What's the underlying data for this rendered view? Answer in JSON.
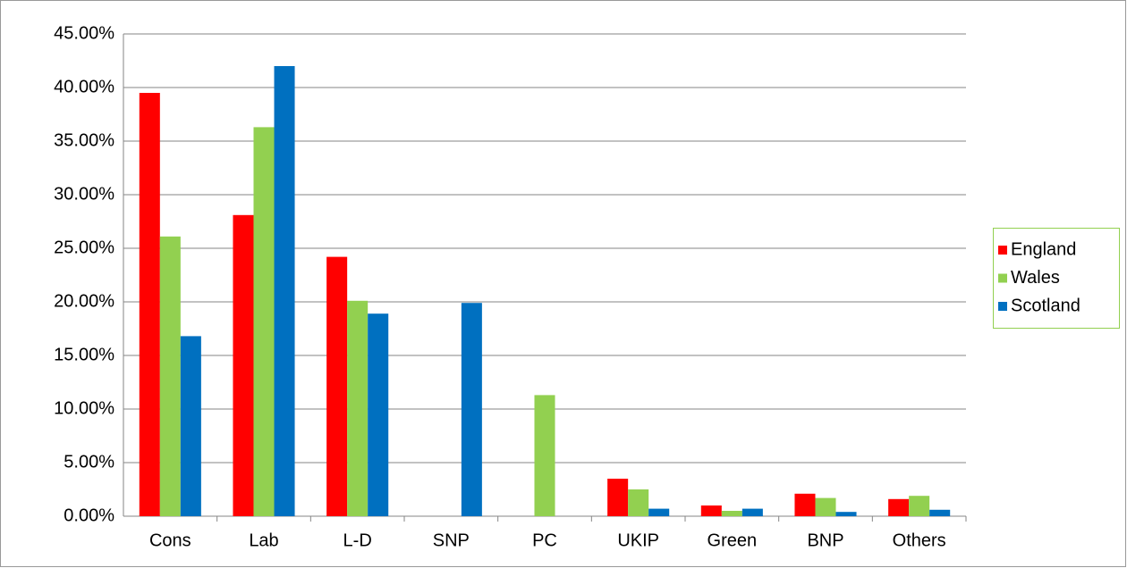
{
  "chart_data": {
    "type": "bar",
    "categories": [
      "Cons",
      "Lab",
      "L-D",
      "SNP",
      "PC",
      "UKIP",
      "Green",
      "BNP",
      "Others"
    ],
    "series": [
      {
        "name": "England",
        "color": "#ff0000",
        "values": [
          39.5,
          28.1,
          24.2,
          0,
          0,
          3.5,
          1.0,
          2.1,
          1.6
        ]
      },
      {
        "name": "Wales",
        "color": "#92d050",
        "values": [
          26.1,
          36.3,
          20.1,
          0,
          11.3,
          2.5,
          0.5,
          1.7,
          1.9
        ]
      },
      {
        "name": "Scotland",
        "color": "#0070c0",
        "values": [
          16.8,
          42.0,
          18.9,
          19.9,
          0,
          0.7,
          0.7,
          0.4,
          0.6
        ]
      }
    ],
    "ylim": [
      0,
      45
    ],
    "yticks": [
      {
        "value": 0,
        "label": "0.00%"
      },
      {
        "value": 5,
        "label": "5.00%"
      },
      {
        "value": 10,
        "label": "10.00%"
      },
      {
        "value": 15,
        "label": "15.00%"
      },
      {
        "value": 20,
        "label": "20.00%"
      },
      {
        "value": 25,
        "label": "25.00%"
      },
      {
        "value": 30,
        "label": "30.00%"
      },
      {
        "value": 35,
        "label": "35.00%"
      },
      {
        "value": 40,
        "label": "40.00%"
      },
      {
        "value": 45,
        "label": "45.00%"
      }
    ],
    "grid": true,
    "legend": "right"
  }
}
